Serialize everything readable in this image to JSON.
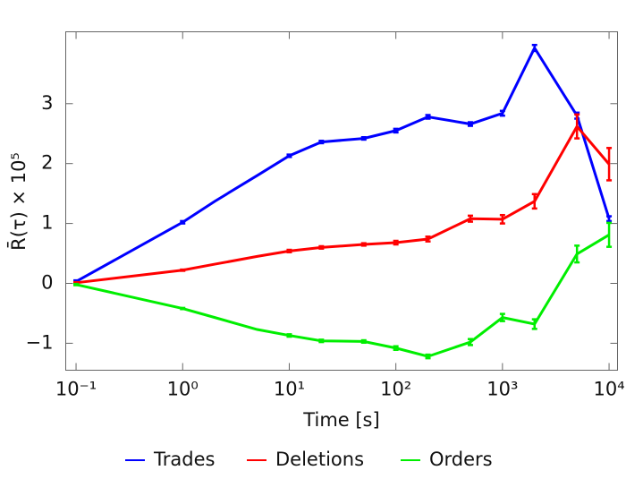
{
  "chart_data": {
    "type": "line",
    "x_label": "Time [s]",
    "y_label": "R̄(τ) × 10⁵",
    "x": [
      0.1,
      1,
      2,
      5,
      10,
      20,
      50,
      100,
      200,
      500,
      1000,
      2000,
      5000,
      10000
    ],
    "series": [
      {
        "name": "Trades",
        "color": "#0000ff",
        "values": [
          0.03,
          1.02,
          1.37,
          1.8,
          2.13,
          2.36,
          2.42,
          2.55,
          2.78,
          2.66,
          2.84,
          3.93,
          2.8,
          1.08
        ],
        "errors": [
          0.02,
          0.02,
          null,
          null,
          0.02,
          0.02,
          0.02,
          0.03,
          0.03,
          0.03,
          0.04,
          0.05,
          0.05,
          0.04
        ]
      },
      {
        "name": "Deletions",
        "color": "#ff0000",
        "values": [
          0.01,
          0.22,
          0.32,
          0.45,
          0.54,
          0.6,
          0.65,
          0.68,
          0.74,
          1.08,
          1.07,
          1.37,
          2.62,
          1.99
        ],
        "errors": [
          0.01,
          0.01,
          null,
          null,
          0.02,
          0.02,
          0.02,
          0.03,
          0.04,
          0.05,
          0.07,
          0.12,
          0.2,
          0.27
        ]
      },
      {
        "name": "Orders",
        "color": "#00ee00",
        "values": [
          -0.02,
          -0.42,
          -0.57,
          -0.77,
          -0.87,
          -0.96,
          -0.97,
          -1.08,
          -1.22,
          -0.98,
          -0.57,
          -0.68,
          0.49,
          0.81
        ],
        "errors": [
          0.01,
          0.01,
          null,
          null,
          0.02,
          0.02,
          0.02,
          0.03,
          0.03,
          0.05,
          0.06,
          0.08,
          0.14,
          0.2
        ]
      }
    ],
    "xscale": "log",
    "xlim": [
      0.08,
      12000
    ],
    "xticks": [
      {
        "value": 0.1,
        "label": "10⁻¹"
      },
      {
        "value": 1,
        "label": "10⁰"
      },
      {
        "value": 10,
        "label": "10¹"
      },
      {
        "value": 100,
        "label": "10²"
      },
      {
        "value": 1000,
        "label": "10³"
      },
      {
        "value": 10000,
        "label": "10⁴"
      }
    ],
    "ylim": [
      -1.45,
      4.2
    ],
    "yticks": [
      {
        "value": -1,
        "label": "−1"
      },
      0,
      1,
      2,
      3
    ],
    "legend": "bottom"
  }
}
